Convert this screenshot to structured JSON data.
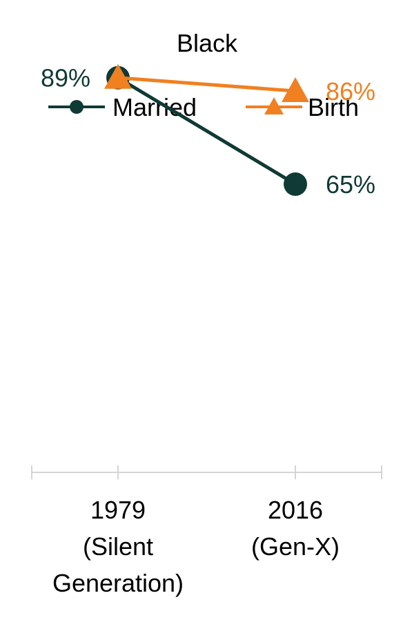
{
  "chart_data": {
    "type": "line",
    "title": "Black",
    "categories": [
      [
        "1979",
        "(Silent",
        "Generation)"
      ],
      [
        "2016",
        "(Gen-X)"
      ]
    ],
    "series": [
      {
        "name": "Married",
        "values": [
          89,
          65
        ],
        "labels": [
          "89%",
          "65%"
        ],
        "color": "#0f3a35",
        "marker": "circle"
      },
      {
        "name": "Birth",
        "values": [
          89,
          86
        ],
        "labels": [
          "",
          "86%"
        ],
        "color": "#f08020",
        "marker": "triangle"
      }
    ],
    "ylim": [
      0,
      100
    ],
    "grid": false,
    "legend": "top"
  }
}
